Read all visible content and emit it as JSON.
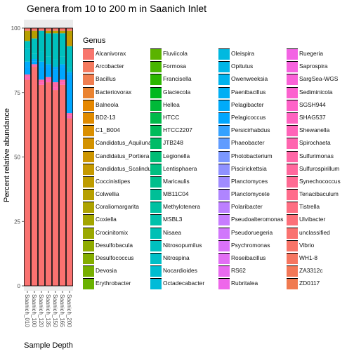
{
  "chart_data": {
    "type": "bar",
    "stacked": true,
    "title": "Genera from 10 to 200 m in Saanich Inlet",
    "xlabel": "Sample Depth",
    "ylabel": "Percent relative abundance",
    "ylim": [
      0,
      100
    ],
    "yticks": [
      0,
      25,
      50,
      75,
      100
    ],
    "grid": true,
    "legend_position": "right",
    "legend_title": "Genus",
    "categories": [
      "Saanich_010",
      "Saanich_100",
      "Saanich_120",
      "Saanich_135",
      "Saanich_150",
      "Saanich_165",
      "Saanich_200"
    ],
    "genera": [
      {
        "name": "Alcanivorax",
        "color": "#f8766d"
      },
      {
        "name": "Arcobacter",
        "color": "#f47a5f"
      },
      {
        "name": "Bacillus",
        "color": "#f07e50"
      },
      {
        "name": "Bacteriovorax",
        "color": "#ea8331"
      },
      {
        "name": "Balneola",
        "color": "#e58700"
      },
      {
        "name": "BD2-13",
        "color": "#e08b00"
      },
      {
        "name": "C1_B004",
        "color": "#da8f00"
      },
      {
        "name": "Candidatus_Aquiluna",
        "color": "#d39200"
      },
      {
        "name": "Candidatus_Portiera",
        "color": "#cd9600"
      },
      {
        "name": "Candidatus_Scalindua",
        "color": "#c59900"
      },
      {
        "name": "Coccinistipes",
        "color": "#be9c00"
      },
      {
        "name": "Colwellia",
        "color": "#b69f00"
      },
      {
        "name": "Coraliomargarita",
        "color": "#ada200"
      },
      {
        "name": "Coxiella",
        "color": "#a3a500"
      },
      {
        "name": "Crocinitomix",
        "color": "#9aa800"
      },
      {
        "name": "Desulfobacula",
        "color": "#8fab00"
      },
      {
        "name": "Desulfococcus",
        "color": "#84ad00"
      },
      {
        "name": "Devosia",
        "color": "#77af00"
      },
      {
        "name": "Erythrobacter",
        "color": "#69b100"
      },
      {
        "name": "Fluviicola",
        "color": "#5bb300"
      },
      {
        "name": "Formosa",
        "color": "#48b500"
      },
      {
        "name": "Francisella",
        "color": "#2bb600"
      },
      {
        "name": "Glaciecola",
        "color": "#00b81f"
      },
      {
        "name": "Hellea",
        "color": "#00b938"
      },
      {
        "name": "HTCC",
        "color": "#00ba4a"
      },
      {
        "name": "HTCC2207",
        "color": "#00bb5a"
      },
      {
        "name": "JTB248",
        "color": "#00bc68"
      },
      {
        "name": "Legionella",
        "color": "#00bd75"
      },
      {
        "name": "Lentisphaera",
        "color": "#00be81"
      },
      {
        "name": "Maricaulis",
        "color": "#00bf8c"
      },
      {
        "name": "MB11C04",
        "color": "#00bf97"
      },
      {
        "name": "Methylotenera",
        "color": "#00c0a1"
      },
      {
        "name": "MSBL3",
        "color": "#00c0ab"
      },
      {
        "name": "Nisaea",
        "color": "#00c0b5"
      },
      {
        "name": "Nitrosopumilus",
        "color": "#00c0be"
      },
      {
        "name": "Nitrospina",
        "color": "#00bfc7"
      },
      {
        "name": "Nocardioides",
        "color": "#00bdd0"
      },
      {
        "name": "Octadecabacter",
        "color": "#00bbd8"
      },
      {
        "name": "Oleispira",
        "color": "#00b9e0"
      },
      {
        "name": "Opitutus",
        "color": "#00b6e7"
      },
      {
        "name": "Owenweeksia",
        "color": "#00b3ee"
      },
      {
        "name": "Paenibacillus",
        "color": "#00aff4"
      },
      {
        "name": "Pelagibacter",
        "color": "#00abfa"
      },
      {
        "name": "Pelagicoccus",
        "color": "#00a6ff"
      },
      {
        "name": "Persicirhabdus",
        "color": "#35a1ff"
      },
      {
        "name": "Phaeobacter",
        "color": "#619cff"
      },
      {
        "name": "Photobacterium",
        "color": "#7b97ff"
      },
      {
        "name": "Piscirickettsia",
        "color": "#8f91ff"
      },
      {
        "name": "Planctomyces",
        "color": "#a08bff"
      },
      {
        "name": "Planctomycete",
        "color": "#af85ff"
      },
      {
        "name": "Polaribacter",
        "color": "#bc7fff"
      },
      {
        "name": "Pseudoalteromonas",
        "color": "#c77cff"
      },
      {
        "name": "Pseudoruegeria",
        "color": "#d177fc"
      },
      {
        "name": "Psychromonas",
        "color": "#da72f8"
      },
      {
        "name": "Roseibacillus",
        "color": "#e26ef4"
      },
      {
        "name": "RS62",
        "color": "#e86aef"
      },
      {
        "name": "Rubritalea",
        "color": "#ee67ea"
      },
      {
        "name": "Ruegeria",
        "color": "#f364e4"
      },
      {
        "name": "Saprospira",
        "color": "#f763de"
      },
      {
        "name": "SargSea-WGS",
        "color": "#fa62d7"
      },
      {
        "name": "Sediminicola",
        "color": "#fc62cf"
      },
      {
        "name": "SGSH944",
        "color": "#fe62c8"
      },
      {
        "name": "SHAG537",
        "color": "#ff63c0"
      },
      {
        "name": "Shewanella",
        "color": "#ff64b8"
      },
      {
        "name": "Spirochaeta",
        "color": "#ff65af"
      },
      {
        "name": "Sulfurimonas",
        "color": "#ff67a6"
      },
      {
        "name": "Sulfurospirillum",
        "color": "#ff699d"
      },
      {
        "name": "Synechococcus",
        "color": "#ff6b94"
      },
      {
        "name": "Tenacibaculum",
        "color": "#ff6c8b"
      },
      {
        "name": "Tistrella",
        "color": "#fe6e82"
      },
      {
        "name": "Ulvibacter",
        "color": "#fc7079"
      },
      {
        "name": "unclassified",
        "color": "#fa7270"
      },
      {
        "name": "Vibrio",
        "color": "#f87468"
      },
      {
        "name": "WH1-8",
        "color": "#f67660"
      },
      {
        "name": "ZA3312c",
        "color": "#f37858"
      },
      {
        "name": "ZD0117",
        "color": "#f07a50"
      }
    ],
    "series": [
      {
        "name": "Alcanivorax",
        "values": [
          1,
          1,
          1,
          1,
          1,
          1,
          1
        ]
      },
      {
        "name": "Colwellia",
        "values": [
          4,
          3,
          0,
          1,
          1,
          1,
          2
        ]
      },
      {
        "name": "Candidatus_Scalindua",
        "values": [
          0,
          0,
          0,
          0,
          0,
          0,
          4
        ]
      },
      {
        "name": "Nitrosopumilus",
        "values": [
          3,
          6,
          8,
          9,
          10,
          9,
          8
        ]
      },
      {
        "name": "Nitrospina",
        "values": [
          5,
          2,
          4,
          3,
          3,
          3,
          2
        ]
      },
      {
        "name": "Pelagibacter",
        "values": [
          2,
          1,
          2,
          1,
          1,
          1,
          1
        ]
      },
      {
        "name": "Pelagicoccus",
        "values": [
          3,
          1,
          5,
          4,
          5,
          5,
          15
        ]
      },
      {
        "name": "Sulfurimonas",
        "values": [
          1,
          1,
          1,
          1,
          2,
          1,
          1
        ]
      },
      {
        "name": "Shewanella",
        "values": [
          1,
          0,
          1,
          1,
          1,
          1,
          1
        ]
      },
      {
        "name": "unclassified",
        "values": [
          80,
          85,
          78,
          79,
          76,
          78,
          65
        ]
      }
    ]
  }
}
